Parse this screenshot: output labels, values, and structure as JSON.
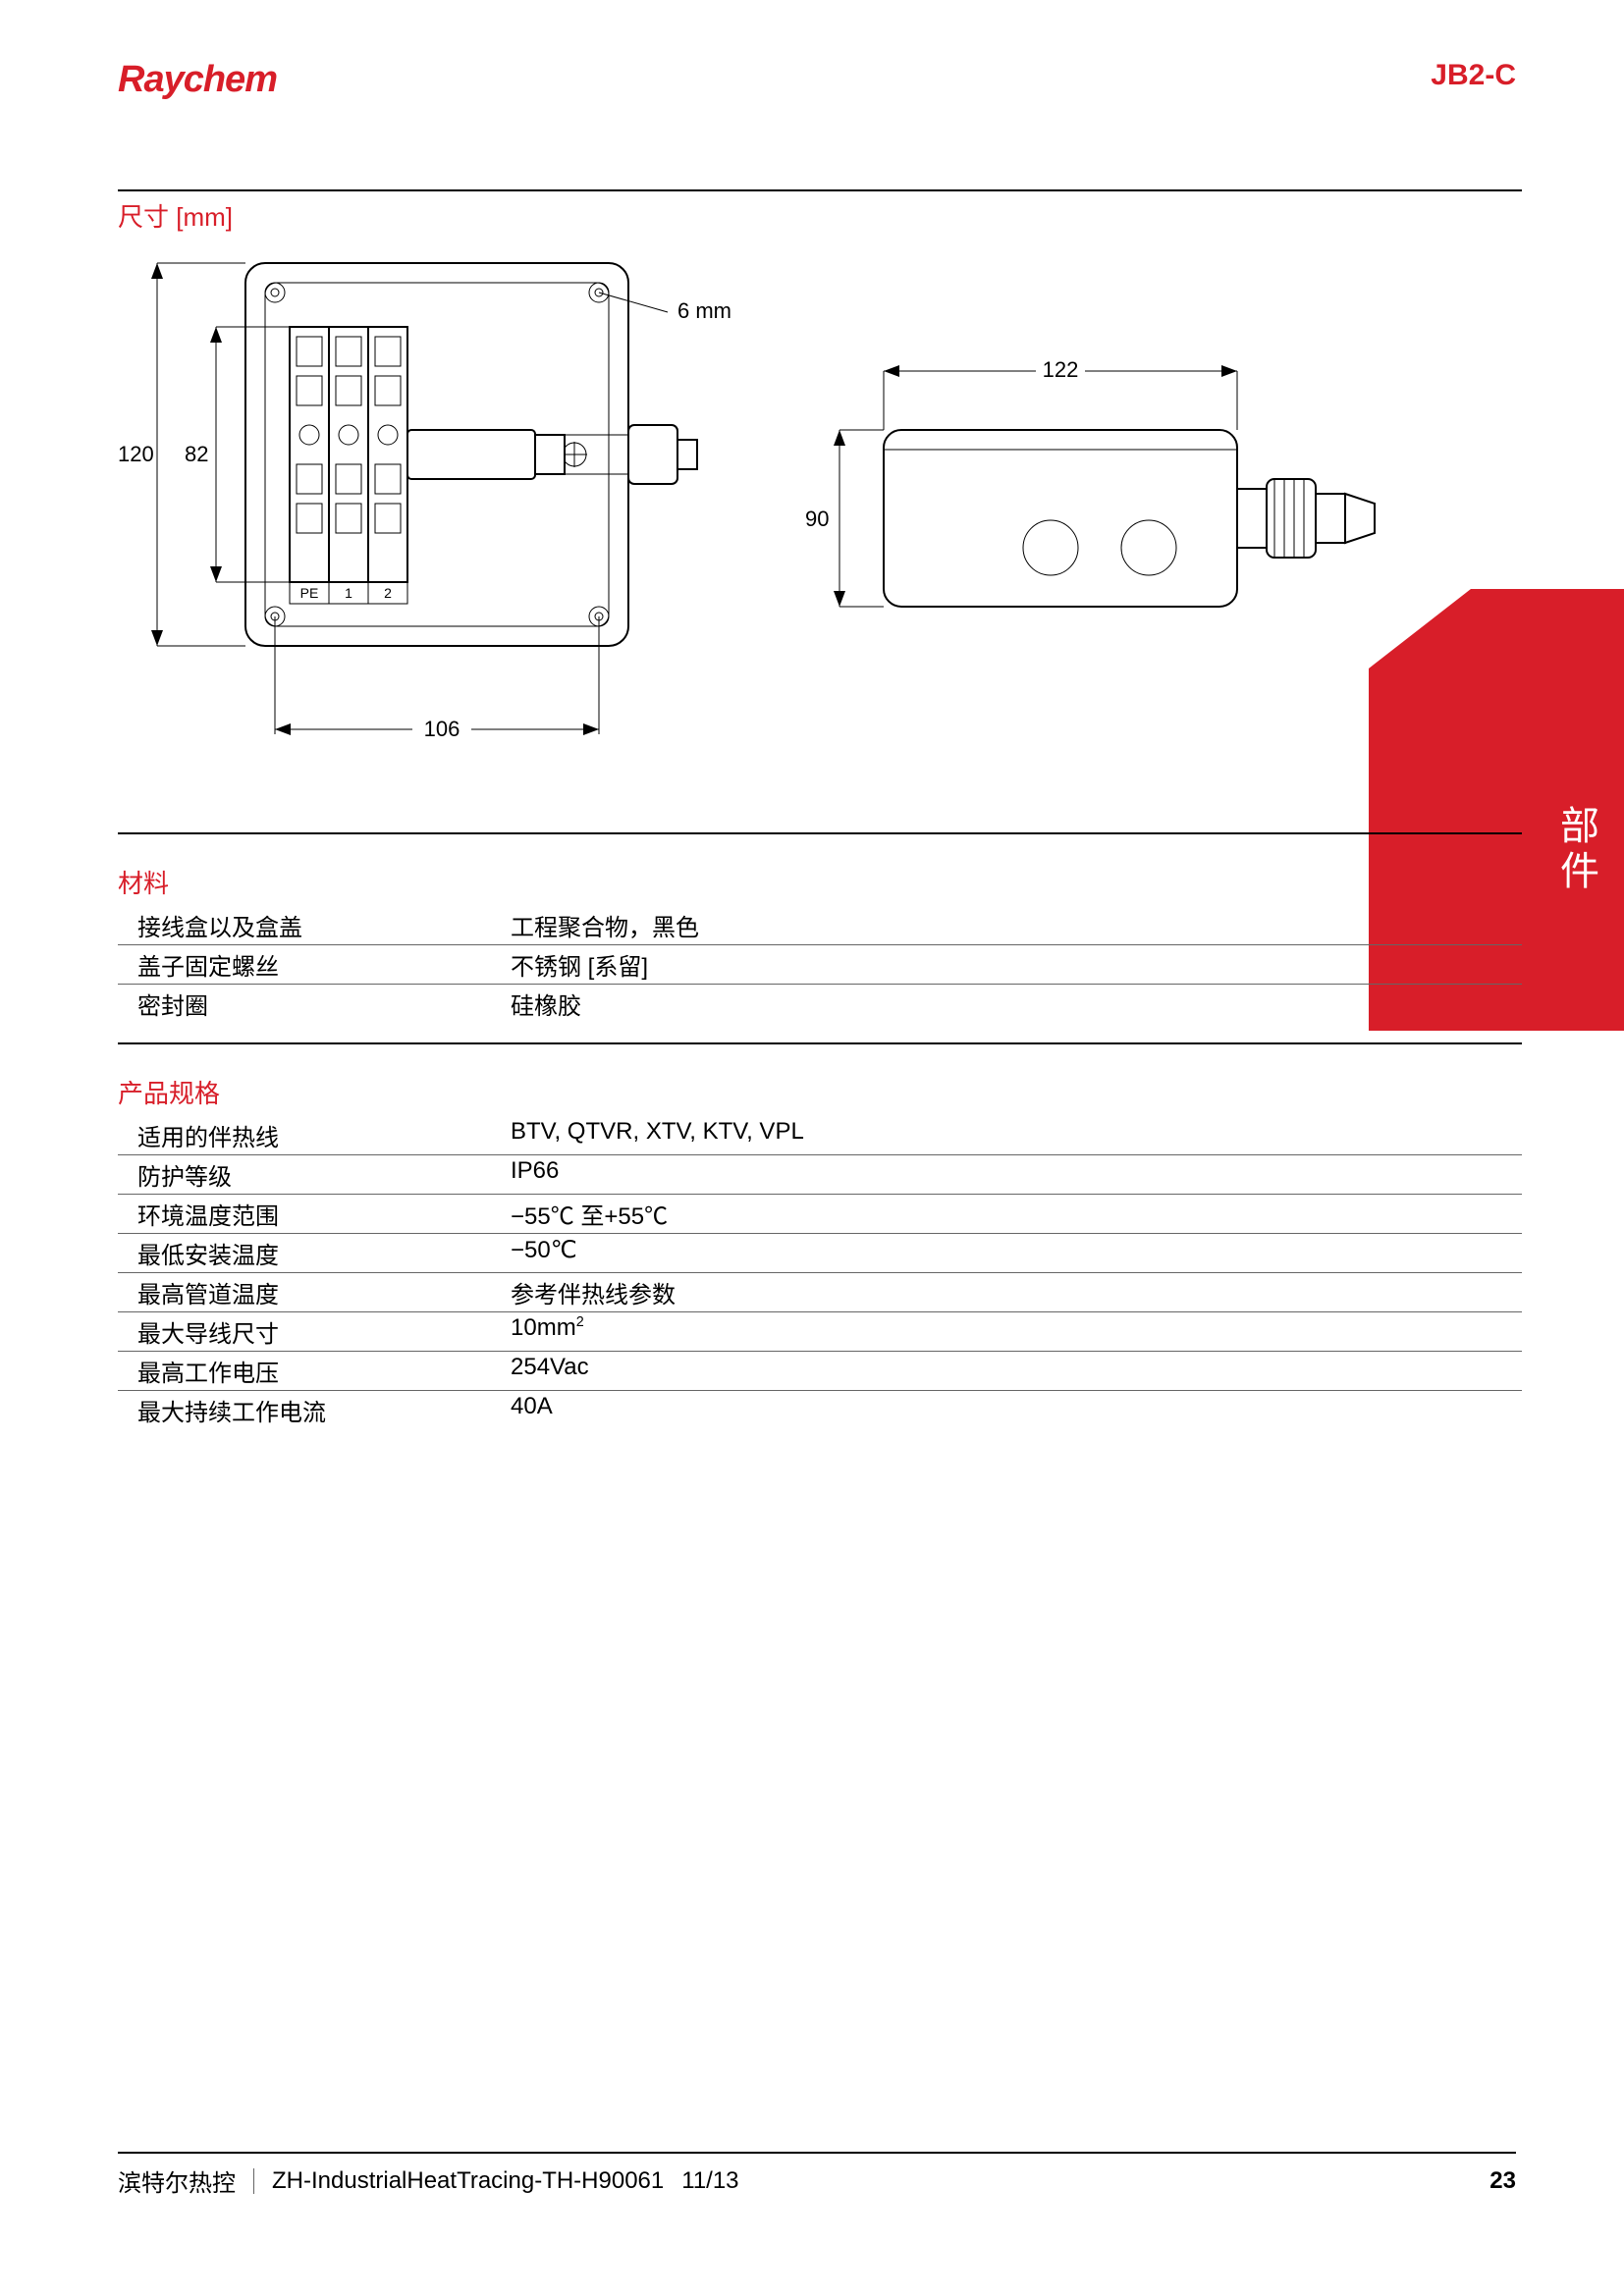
{
  "header": {
    "logo": "Raychem",
    "product_code": "JB2-C"
  },
  "dimensions_section": {
    "title": "尺寸 [mm]",
    "labels": {
      "d120": "120",
      "d82": "82",
      "d106": "106",
      "d6mm": "6 mm",
      "d122": "122",
      "d90": "90",
      "pe": "PE",
      "t1": "1",
      "t2": "2"
    }
  },
  "materials": {
    "title": "材料",
    "rows": [
      {
        "label": "接线盒以及盒盖",
        "value": "工程聚合物，黑色"
      },
      {
        "label": "盖子固定螺丝",
        "value": "不锈钢 [系留]"
      },
      {
        "label": "密封圈",
        "value": "硅橡胶"
      }
    ]
  },
  "specs": {
    "title": "产品规格",
    "rows": [
      {
        "label": "适用的伴热线",
        "value": "BTV, QTVR, XTV, KTV, VPL"
      },
      {
        "label": "防护等级",
        "value": "IP66"
      },
      {
        "label": "环境温度范围",
        "value": "−55℃ 至+55℃"
      },
      {
        "label": "最低安装温度",
        "value": "−50℃"
      },
      {
        "label": "最高管道温度",
        "value": "参考伴热线参数"
      },
      {
        "label": "最大导线尺寸",
        "value_html": "10mm<sup>2</sup>"
      },
      {
        "label": "最高工作电压",
        "value": "254Vac"
      },
      {
        "label": "最大持续工作电流",
        "value": "40A"
      }
    ]
  },
  "side_tab": "部件",
  "footer": {
    "company": "滨特尔热控",
    "doc": "ZH-IndustrialHeatTracing-TH-H90061",
    "date": "11/13",
    "page": "23"
  },
  "colors": {
    "accent": "#d81e29",
    "text": "#000000"
  }
}
